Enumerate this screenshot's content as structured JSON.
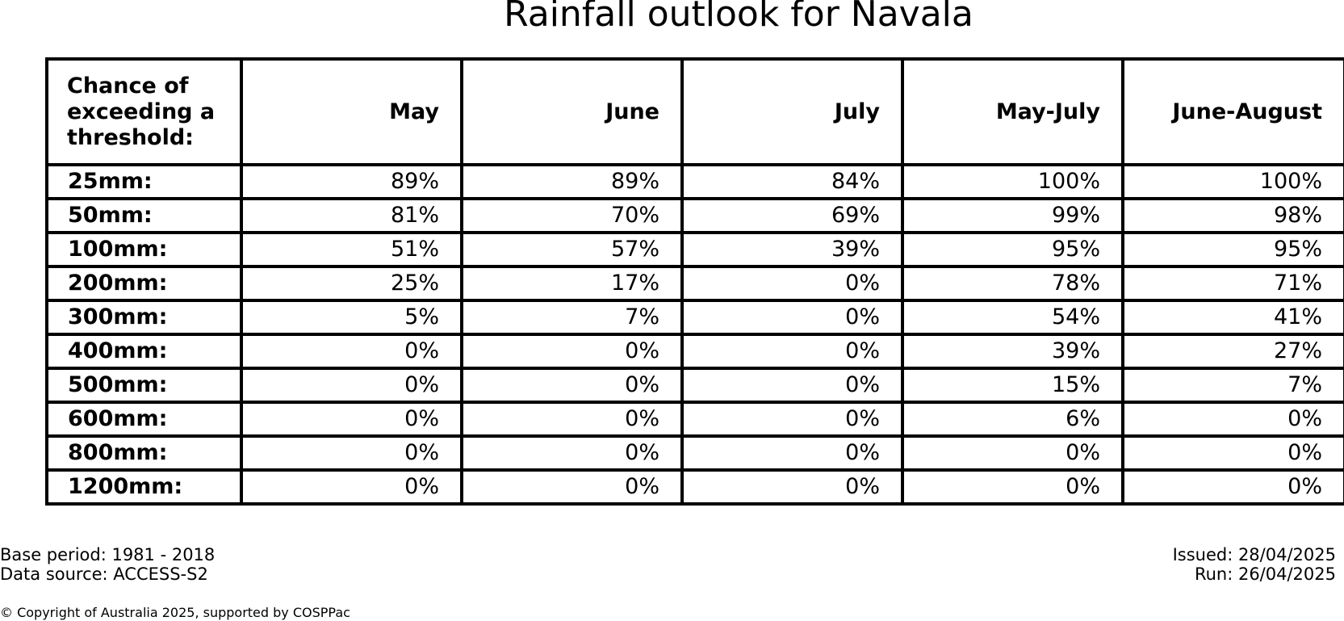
{
  "title": "Rainfall outlook for Navala",
  "chart_data": {
    "type": "table",
    "title": "Rainfall outlook for Navala",
    "corner_header": "Chance of exceeding a threshold:",
    "columns": [
      "May",
      "June",
      "July",
      "May-July",
      "June-August"
    ],
    "rows": [
      {
        "label": "25mm:",
        "values": [
          "89%",
          "89%",
          "84%",
          "100%",
          "100%"
        ]
      },
      {
        "label": "50mm:",
        "values": [
          "81%",
          "70%",
          "69%",
          "99%",
          "98%"
        ]
      },
      {
        "label": "100mm:",
        "values": [
          "51%",
          "57%",
          "39%",
          "95%",
          "95%"
        ]
      },
      {
        "label": "200mm:",
        "values": [
          "25%",
          "17%",
          "0%",
          "78%",
          "71%"
        ]
      },
      {
        "label": "300mm:",
        "values": [
          "5%",
          "7%",
          "0%",
          "54%",
          "41%"
        ]
      },
      {
        "label": "400mm:",
        "values": [
          "0%",
          "0%",
          "0%",
          "39%",
          "27%"
        ]
      },
      {
        "label": "500mm:",
        "values": [
          "0%",
          "0%",
          "0%",
          "15%",
          "7%"
        ]
      },
      {
        "label": "600mm:",
        "values": [
          "0%",
          "0%",
          "0%",
          "6%",
          "0%"
        ]
      },
      {
        "label": "800mm:",
        "values": [
          "0%",
          "0%",
          "0%",
          "0%",
          "0%"
        ]
      },
      {
        "label": "1200mm:",
        "values": [
          "0%",
          "0%",
          "0%",
          "0%",
          "0%"
        ]
      }
    ]
  },
  "footer": {
    "base_period": "Base period: 1981 - 2018",
    "data_source": "Data source: ACCESS-S2",
    "issued": "Issued: 28/04/2025",
    "run": "Run: 26/04/2025",
    "copyright": "© Copyright of Australia 2025, supported by COSPPac"
  }
}
